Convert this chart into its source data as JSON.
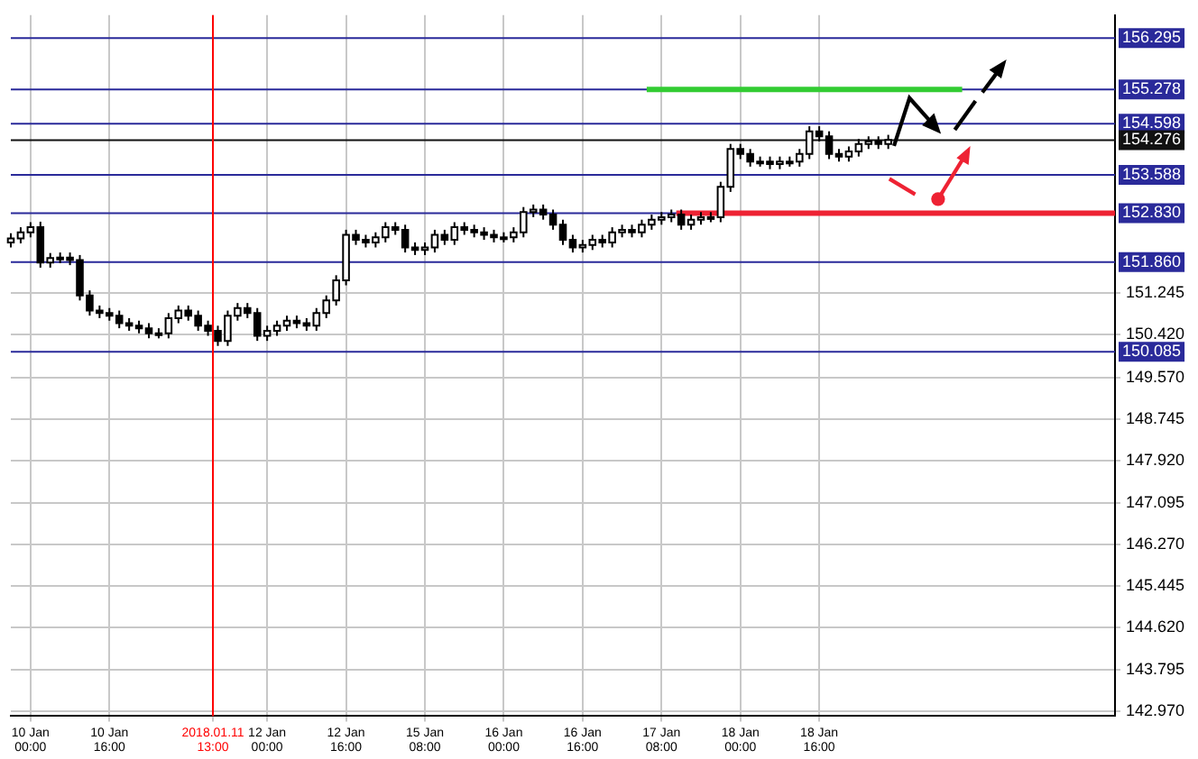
{
  "chart_data": {
    "type": "candlestick",
    "categories": [
      null,
      null,
      null,
      null,
      "10 Jan 00:00",
      null,
      null,
      null,
      null,
      null,
      null,
      null,
      null,
      null,
      null,
      null,
      null,
      null,
      null,
      null,
      "10 Jan 16:00",
      null,
      null,
      null,
      null,
      null,
      null,
      null,
      null,
      null,
      null,
      null,
      null,
      null,
      null,
      null,
      null,
      null,
      null,
      null,
      null,
      "2018.01.11 13:00",
      null,
      null,
      null,
      null,
      null,
      null,
      null,
      null,
      null,
      null,
      "12 Jan 00:00",
      null,
      null,
      null,
      null,
      null,
      null,
      null,
      null,
      null,
      null,
      null,
      null,
      null,
      null,
      null,
      "12 Jan 16:00",
      null,
      null,
      null,
      null,
      null,
      null,
      null,
      null,
      null,
      null,
      null,
      null,
      null,
      null,
      null,
      "15 Jan 08:00",
      null,
      null,
      null,
      null,
      null,
      null,
      null,
      null,
      null,
      null,
      null,
      null,
      null,
      null,
      null,
      "16 Jan 00:00",
      null,
      null,
      null,
      null,
      null,
      null,
      null,
      null,
      null,
      null,
      null,
      null,
      null,
      null,
      null,
      "16 Jan 16:00",
      null,
      null,
      null,
      null,
      null,
      null,
      null,
      null,
      null,
      null,
      null,
      null,
      null,
      null,
      null,
      "17 Jan 08:00",
      null,
      null,
      null,
      null,
      null,
      null,
      null,
      null,
      null,
      null,
      null,
      null,
      null,
      null,
      null,
      "18 Jan 00:00",
      null,
      null,
      null,
      null,
      null,
      null,
      null,
      null,
      null,
      null,
      null,
      null,
      null,
      null,
      null,
      "18 Jan 16:00",
      null,
      null,
      null,
      null,
      null,
      null,
      null,
      null,
      null,
      null,
      null,
      null,
      null,
      null,
      null,
      null,
      null,
      null,
      null,
      null,
      null,
      null,
      null,
      null,
      null,
      null,
      null,
      null,
      null,
      null,
      null,
      null,
      null,
      null,
      null,
      null,
      null,
      null,
      null,
      null,
      null,
      null,
      null,
      null,
      null,
      null,
      null,
      null,
      null,
      null,
      null,
      null,
      null,
      null,
      null,
      null,
      null,
      null,
      null,
      null
    ],
    "ohlc": [
      [
        152.25,
        152.43,
        152.15,
        152.33
      ],
      null,
      [
        152.33,
        152.55,
        152.23,
        152.45
      ],
      null,
      [
        152.45,
        152.65,
        152.35,
        152.55
      ],
      null,
      [
        152.55,
        152.66,
        151.75,
        151.85
      ],
      null,
      [
        151.85,
        152.04,
        151.75,
        151.94
      ],
      null,
      [
        151.94,
        152.05,
        151.84,
        151.95
      ],
      null,
      [
        151.95,
        152.05,
        151.8,
        151.9
      ],
      null,
      [
        151.9,
        152.0,
        151.1,
        151.2
      ],
      null,
      [
        151.2,
        151.3,
        150.8,
        150.9
      ],
      null,
      [
        150.9,
        151.0,
        150.75,
        150.85
      ],
      null,
      [
        150.85,
        150.95,
        150.7,
        150.8
      ],
      null,
      [
        150.8,
        150.9,
        150.55,
        150.65
      ],
      null,
      [
        150.65,
        150.75,
        150.5,
        150.6
      ],
      null,
      [
        150.6,
        150.7,
        150.45,
        150.55
      ],
      null,
      [
        150.55,
        150.65,
        150.35,
        150.45
      ],
      null,
      [
        150.45,
        150.55,
        150.35,
        150.45
      ],
      null,
      [
        150.45,
        150.85,
        150.35,
        150.75
      ],
      null,
      [
        150.75,
        151.0,
        150.65,
        150.9
      ],
      null,
      [
        150.9,
        151.0,
        150.7,
        150.8
      ],
      null,
      [
        150.8,
        150.9,
        150.5,
        150.6
      ],
      null,
      [
        150.6,
        150.7,
        150.4,
        150.5
      ],
      null,
      [
        150.5,
        150.6,
        150.2,
        150.3
      ],
      null,
      [
        150.3,
        150.9,
        150.2,
        150.8
      ],
      null,
      [
        150.8,
        151.05,
        150.7,
        150.95
      ],
      null,
      [
        150.95,
        151.05,
        150.75,
        150.85
      ],
      null,
      [
        150.85,
        150.95,
        150.3,
        150.4
      ],
      null,
      [
        150.4,
        150.6,
        150.3,
        150.5
      ],
      null,
      [
        150.5,
        150.7,
        150.4,
        150.6
      ],
      null,
      [
        150.6,
        150.8,
        150.5,
        150.7
      ],
      null,
      [
        150.7,
        150.8,
        150.55,
        150.65
      ],
      null,
      [
        150.65,
        150.75,
        150.5,
        150.6
      ],
      null,
      [
        150.6,
        150.95,
        150.5,
        150.85
      ],
      null,
      [
        150.85,
        151.2,
        150.75,
        151.1
      ],
      null,
      [
        151.1,
        151.6,
        151.0,
        151.5
      ],
      null,
      [
        151.5,
        152.5,
        151.4,
        152.4
      ],
      null,
      [
        152.4,
        152.5,
        152.2,
        152.3
      ],
      null,
      [
        152.3,
        152.4,
        152.15,
        152.25
      ],
      null,
      [
        152.25,
        152.45,
        152.15,
        152.35
      ],
      null,
      [
        152.35,
        152.65,
        152.25,
        152.55
      ],
      null,
      [
        152.55,
        152.65,
        152.4,
        152.5
      ],
      null,
      [
        152.5,
        152.6,
        152.05,
        152.15
      ],
      null,
      [
        152.15,
        152.25,
        152.0,
        152.1
      ],
      null,
      [
        152.1,
        152.25,
        152.0,
        152.15
      ],
      null,
      [
        152.15,
        152.5,
        152.05,
        152.4
      ],
      null,
      [
        152.4,
        152.5,
        152.2,
        152.3
      ],
      null,
      [
        152.3,
        152.65,
        152.2,
        152.55
      ],
      null,
      [
        152.55,
        152.65,
        152.4,
        152.5
      ],
      null,
      [
        152.5,
        152.6,
        152.35,
        152.45
      ],
      null,
      [
        152.45,
        152.55,
        152.3,
        152.4
      ],
      null,
      [
        152.4,
        152.5,
        152.25,
        152.35
      ],
      null,
      [
        152.35,
        152.45,
        152.25,
        152.35
      ],
      null,
      [
        152.35,
        152.55,
        152.25,
        152.45
      ],
      null,
      [
        152.45,
        152.95,
        152.35,
        152.85
      ],
      null,
      [
        152.85,
        153.0,
        152.75,
        152.9
      ],
      null,
      [
        152.9,
        153.0,
        152.7,
        152.8
      ],
      null,
      [
        152.8,
        152.9,
        152.5,
        152.6
      ],
      null,
      [
        152.6,
        152.7,
        152.2,
        152.3
      ],
      null,
      [
        152.3,
        152.4,
        152.05,
        152.15
      ],
      null,
      [
        152.15,
        152.3,
        152.05,
        152.2
      ],
      null,
      [
        152.2,
        152.4,
        152.1,
        152.3
      ],
      null,
      [
        152.3,
        152.4,
        152.15,
        152.25
      ],
      null,
      [
        152.25,
        152.55,
        152.15,
        152.45
      ],
      null,
      [
        152.45,
        152.6,
        152.35,
        152.5
      ],
      null,
      [
        152.5,
        152.6,
        152.35,
        152.45
      ],
      null,
      [
        152.45,
        152.7,
        152.35,
        152.6
      ],
      null,
      [
        152.6,
        152.8,
        152.5,
        152.7
      ],
      null,
      [
        152.7,
        152.85,
        152.6,
        152.75
      ],
      null,
      [
        152.75,
        152.9,
        152.65,
        152.8
      ],
      null,
      [
        152.8,
        152.9,
        152.5,
        152.6
      ],
      null,
      [
        152.6,
        152.8,
        152.5,
        152.7
      ],
      null,
      [
        152.7,
        152.85,
        152.6,
        152.75
      ],
      null,
      [
        152.75,
        152.85,
        152.65,
        152.75
      ],
      null,
      [
        152.75,
        153.45,
        152.65,
        153.35
      ],
      null,
      [
        153.35,
        154.2,
        153.25,
        154.1
      ],
      null,
      [
        154.1,
        154.2,
        153.9,
        154.0
      ],
      null,
      [
        154.0,
        154.1,
        153.75,
        153.85
      ],
      null,
      [
        153.85,
        153.95,
        153.75,
        153.85
      ],
      null,
      [
        153.85,
        153.95,
        153.7,
        153.8
      ],
      null,
      [
        153.8,
        153.95,
        153.7,
        153.85
      ],
      null,
      [
        153.85,
        153.95,
        153.75,
        153.85
      ],
      null,
      [
        153.85,
        154.1,
        153.75,
        154.0
      ],
      null,
      [
        154.0,
        154.55,
        153.9,
        154.45
      ],
      null,
      [
        154.45,
        154.55,
        154.25,
        154.35
      ],
      null,
      [
        154.35,
        154.45,
        153.9,
        154.0
      ],
      null,
      [
        154.0,
        154.1,
        153.85,
        153.95
      ],
      null,
      [
        153.95,
        154.15,
        153.85,
        154.05
      ],
      null,
      [
        154.05,
        154.3,
        153.95,
        154.2
      ],
      null,
      [
        154.2,
        154.35,
        154.1,
        154.25
      ],
      null,
      [
        154.25,
        154.35,
        154.1,
        154.2
      ],
      null,
      [
        154.2,
        154.38,
        154.1,
        154.28
      ],
      null,
      null,
      null,
      null,
      null,
      null,
      null,
      null,
      null,
      null,
      null,
      null,
      null,
      null,
      null,
      null,
      null,
      null,
      null,
      null,
      null,
      null,
      null,
      null,
      null,
      null,
      null,
      null,
      null,
      null,
      null,
      null,
      null,
      null,
      null,
      null,
      null,
      null,
      null,
      null,
      null,
      null,
      null,
      null,
      null,
      null
    ],
    "ylim": [
      142.87,
      156.75
    ],
    "yticks": [
      {
        "value": 142.97,
        "label": "142.970"
      },
      {
        "value": 143.795,
        "label": "143.795"
      },
      {
        "value": 144.62,
        "label": "144.620"
      },
      {
        "value": 145.445,
        "label": "145.445"
      },
      {
        "value": 146.27,
        "label": "146.270"
      },
      {
        "value": 147.095,
        "label": "147.095"
      },
      {
        "value": 147.92,
        "label": "147.920"
      },
      {
        "value": 148.745,
        "label": "148.745"
      },
      {
        "value": 149.57,
        "label": "149.570"
      },
      {
        "value": 150.42,
        "label": "150.420"
      },
      {
        "value": 151.245,
        "label": "151.245"
      }
    ],
    "grid": true,
    "series": [
      {
        "type": "line",
        "color": "#33cc33",
        "values": [
          null,
          null,
          null,
          null,
          null,
          null,
          null,
          null,
          null,
          null,
          null,
          null,
          null,
          null,
          null,
          null,
          null,
          null,
          null,
          null,
          null,
          null,
          null,
          null,
          null,
          null,
          null,
          null,
          null,
          null,
          null,
          null,
          null,
          null,
          null,
          null,
          null,
          null,
          null,
          null,
          null,
          null,
          null,
          null,
          null,
          null,
          null,
          null,
          null,
          null,
          null,
          null,
          null,
          null,
          null,
          null,
          null,
          null,
          null,
          null,
          null,
          null,
          null,
          null,
          null,
          null,
          null,
          null,
          null,
          null,
          null,
          null,
          null,
          null,
          null,
          null,
          null,
          null,
          null,
          null,
          null,
          null,
          null,
          null,
          null,
          null,
          null,
          null,
          null,
          null,
          null,
          null,
          null,
          null,
          null,
          null,
          null,
          null,
          null,
          null,
          null,
          null,
          null,
          null,
          null,
          null,
          null,
          null,
          null,
          null,
          null,
          null,
          null,
          null,
          null,
          null,
          null,
          null,
          null,
          null,
          null,
          null,
          null,
          null,
          null,
          null,
          null,
          null,
          null,
          155.28,
          155.28,
          155.28,
          155.28,
          155.28,
          155.28,
          155.28,
          155.28,
          155.28,
          155.28,
          155.28,
          155.28,
          155.28,
          155.28,
          155.28,
          155.28,
          155.28,
          155.28,
          155.28,
          155.28,
          155.28,
          155.28,
          155.28,
          155.28,
          155.28,
          155.28,
          155.28,
          155.28,
          155.28,
          155.28,
          155.28,
          155.28,
          155.28,
          155.28,
          155.28,
          155.28,
          155.28,
          155.28,
          155.28,
          155.28,
          155.28,
          155.28,
          155.28,
          155.28,
          155.28,
          155.28,
          155.28,
          155.28,
          155.28,
          155.28,
          155.28,
          155.28,
          155.28,
          155.28,
          155.28,
          155.28,
          155.28,
          155.28,
          155.28,
          155.28,
          155.28,
          155.28,
          155.28,
          155.28,
          155.28,
          null,
          null,
          null,
          null,
          null,
          null,
          null,
          null,
          null,
          null,
          null,
          null,
          null,
          null,
          null,
          null,
          null,
          null,
          null,
          null,
          null,
          null,
          null,
          null,
          null,
          null,
          null,
          null,
          null,
          null,
          null
        ]
      },
      {
        "type": "line",
        "color": "#ee2233",
        "values": [
          null,
          null,
          null,
          null,
          null,
          null,
          null,
          null,
          null,
          null,
          null,
          null,
          null,
          null,
          null,
          null,
          null,
          null,
          null,
          null,
          null,
          null,
          null,
          null,
          null,
          null,
          null,
          null,
          null,
          null,
          null,
          null,
          null,
          null,
          null,
          null,
          null,
          null,
          null,
          null,
          null,
          null,
          null,
          null,
          null,
          null,
          null,
          null,
          null,
          null,
          null,
          null,
          null,
          null,
          null,
          null,
          null,
          null,
          null,
          null,
          null,
          null,
          null,
          null,
          null,
          null,
          null,
          null,
          null,
          null,
          null,
          null,
          null,
          null,
          null,
          null,
          null,
          null,
          null,
          null,
          null,
          null,
          null,
          null,
          null,
          null,
          null,
          null,
          null,
          null,
          null,
          null,
          null,
          null,
          null,
          null,
          null,
          null,
          null,
          null,
          null,
          null,
          null,
          null,
          null,
          null,
          null,
          null,
          null,
          null,
          null,
          null,
          null,
          null,
          null,
          null,
          null,
          null,
          null,
          null,
          null,
          null,
          null,
          null,
          null,
          null,
          null,
          null,
          null,
          null,
          null,
          null,
          null,
          null,
          null,
          152.83,
          152.83,
          152.83,
          152.83,
          152.83,
          152.83,
          152.83,
          152.83,
          152.83,
          152.83,
          152.83,
          152.83,
          152.83,
          152.83,
          152.83,
          152.83,
          152.83,
          152.83,
          152.83,
          152.83,
          152.83,
          152.83,
          152.83,
          152.83,
          152.83,
          152.83,
          152.83,
          152.83,
          152.83,
          152.83,
          152.83,
          152.83,
          152.83,
          152.83,
          152.83,
          152.83,
          152.83,
          152.83,
          152.83,
          152.83,
          152.83,
          152.83,
          152.83,
          152.83,
          152.83,
          152.83,
          152.83,
          152.83,
          152.83,
          152.83,
          152.83,
          152.83,
          152.83,
          152.83,
          152.83,
          152.83,
          152.83,
          152.83,
          152.83,
          152.83,
          152.83,
          152.83,
          152.83,
          152.83,
          152.83,
          152.83,
          152.83,
          152.83,
          152.83,
          152.83,
          152.83,
          152.83,
          152.83,
          152.83,
          152.83,
          152.83,
          152.83,
          152.83,
          152.83,
          152.83,
          152.83,
          152.83,
          152.83,
          152.83,
          152.83,
          152.83,
          152.83,
          152.83,
          152.83,
          152.83
        ]
      }
    ],
    "ref_lines": [
      {
        "axis": "y",
        "value": 156.295,
        "label": "156.295",
        "color": "#2a2a9a"
      },
      {
        "axis": "y",
        "value": 155.278,
        "label": "155.278",
        "color": "#2a2a9a"
      },
      {
        "axis": "y",
        "value": 154.598,
        "label": "154.598",
        "color": "#2a2a9a"
      },
      {
        "axis": "y",
        "value": 154.276,
        "label": "154.276",
        "color": "#111111"
      },
      {
        "axis": "y",
        "value": 153.588,
        "label": "153.588",
        "color": "#2a2a9a"
      },
      {
        "axis": "y",
        "value": 152.83,
        "label": "152.830",
        "color": "#2a2a9a"
      },
      {
        "axis": "y",
        "value": 151.86,
        "label": "151.860",
        "color": "#2a2a9a"
      },
      {
        "axis": "y",
        "value": 150.085,
        "label": "150.085",
        "color": "#2a2a9a"
      },
      {
        "axis": "x",
        "value": "2018.01.11 13:00",
        "color": "#ff0000"
      }
    ]
  }
}
